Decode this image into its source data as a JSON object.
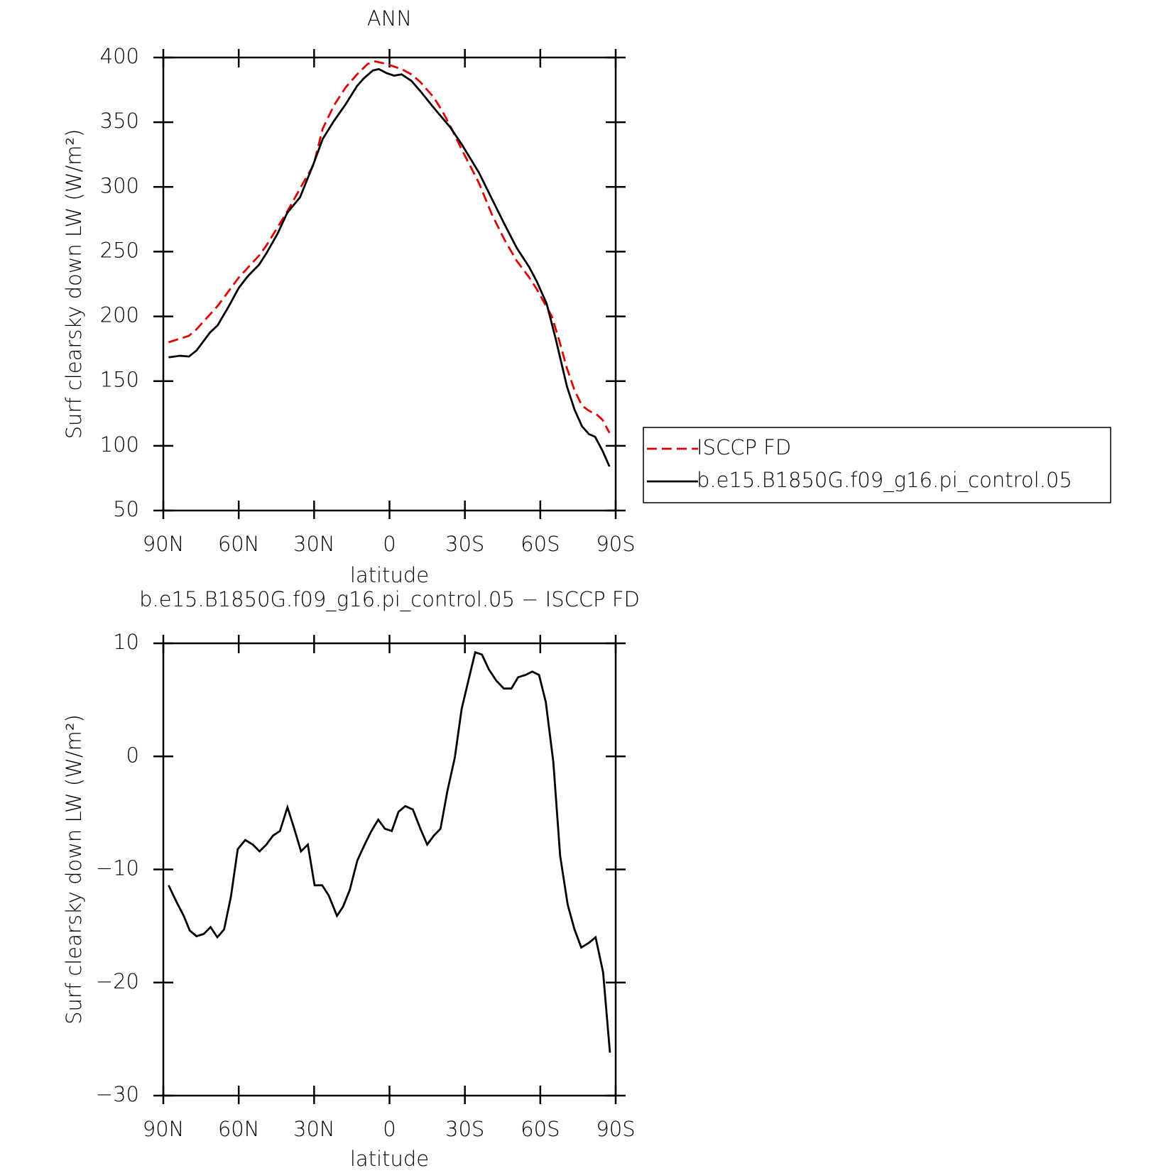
{
  "chart_data": [
    {
      "type": "line",
      "title": "ANN",
      "xlabel": "latitude",
      "ylabel": "Surf clearsky down LW (W/m²)",
      "xlim": [
        90,
        -90
      ],
      "xticks": [
        {
          "value": 90,
          "label": "90N"
        },
        {
          "value": 60,
          "label": "60N"
        },
        {
          "value": 30,
          "label": "30N"
        },
        0,
        {
          "value": -30,
          "label": "30S"
        },
        {
          "value": -60,
          "label": "60S"
        },
        {
          "value": -90,
          "label": "90S"
        }
      ],
      "ylim": [
        50,
        400
      ],
      "yticks": [
        50,
        100,
        150,
        200,
        250,
        300,
        350,
        400
      ],
      "series": [
        {
          "name": "ISCCP FD",
          "color": "#e00000",
          "dashed": true,
          "x": [
            87.9,
            79.8,
            76.8,
            68.4,
            60.0,
            51.9,
            48.9,
            40.7,
            34.1,
            30.2,
            26.6,
            22.1,
            17.4,
            12.9,
            8.7,
            5.7,
            1.2,
            -4.8,
            -8.7,
            -12.3,
            -17.7,
            -21.2,
            -24.2,
            -28.7,
            -35.6,
            -40.7,
            -45.8,
            -50.6,
            -55.6,
            -58.6,
            -64.6,
            -67.6,
            -70.6,
            -73.6,
            -76.6,
            -79.4,
            -82.5,
            -84.8,
            -87.5
          ],
          "values": [
            180,
            185,
            190,
            208,
            230,
            247,
            255,
            281,
            304,
            317,
            345,
            363,
            377,
            387,
            395,
            397,
            395,
            391,
            387,
            381,
            369,
            358,
            347,
            329,
            303,
            279,
            259,
            243,
            230,
            221,
            200,
            181,
            160,
            143,
            131,
            127,
            124,
            120,
            110
          ]
        },
        {
          "name": "b.e15.B1850G.f09_g16.pi_control.05",
          "color": "#000000",
          "dashed": false,
          "x": [
            87.9,
            83.4,
            79.8,
            76.8,
            71.4,
            68.4,
            63.9,
            60.0,
            56.4,
            51.9,
            48.9,
            44.5,
            40.7,
            35.6,
            30.2,
            26.6,
            22.1,
            17.4,
            12.9,
            10.2,
            6.6,
            4.2,
            1.2,
            -1.8,
            -4.8,
            -8.7,
            -12.3,
            -17.7,
            -24.2,
            -28.7,
            -35.6,
            -40.7,
            -45.8,
            -50.6,
            -55.6,
            -58.6,
            -62.5,
            -66.1,
            -70.6,
            -73.6,
            -76.6,
            -79.4,
            -81.8,
            -84.8,
            -87.5
          ],
          "values": [
            168.4,
            169.6,
            169,
            173.6,
            187.6,
            193,
            208,
            222,
            231,
            240,
            249,
            264,
            280,
            292,
            318,
            337,
            351,
            364,
            378,
            384,
            390,
            391,
            388,
            386,
            387,
            382,
            374,
            361,
            346,
            333,
            311,
            291,
            271,
            253,
            238,
            227,
            210,
            183,
            146,
            128,
            115,
            109,
            107,
            96,
            84
          ]
        }
      ]
    },
    {
      "type": "line",
      "title": "b.e15.B1850G.f09_g16.pi_control.05 − ISCCP FD",
      "xlabel": "latitude",
      "ylabel": "Surf clearsky down LW (W/m²)",
      "xlim": [
        90,
        -90
      ],
      "xticks": [
        {
          "value": 90,
          "label": "90N"
        },
        {
          "value": 60,
          "label": "60N"
        },
        {
          "value": 30,
          "label": "30N"
        },
        0,
        {
          "value": -30,
          "label": "30S"
        },
        {
          "value": -60,
          "label": "60S"
        },
        {
          "value": -90,
          "label": "90S"
        }
      ],
      "ylim": [
        -30,
        10
      ],
      "yticks": [
        {
          "value": -30,
          "label": "−30"
        },
        {
          "value": -20,
          "label": "−20"
        },
        {
          "value": -10,
          "label": "−10"
        },
        0,
        10
      ],
      "series": [
        {
          "color": "#000000",
          "dashed": false,
          "x": [
            87.9,
            84.9,
            81.9,
            79.5,
            76.8,
            73.9,
            71.2,
            68.5,
            65.8,
            63.1,
            60.4,
            57.4,
            54.4,
            51.7,
            49.0,
            46.3,
            43.6,
            40.6,
            37.9,
            35.2,
            32.5,
            29.8,
            26.8,
            24.2,
            20.9,
            18.5,
            15.8,
            12.8,
            9.9,
            7.2,
            4.5,
            1.8,
            -0.9,
            -3.6,
            -6.3,
            -9.3,
            -12.3,
            -15.0,
            -17.7,
            -20.3,
            -23.0,
            -26.0,
            -28.7,
            -31.7,
            -34.1,
            -36.8,
            -39.5,
            -42.5,
            -45.5,
            -48.5,
            -51.2,
            -54.1,
            -56.8,
            -59.5,
            -62.2,
            -65.2,
            -67.9,
            -70.9,
            -73.6,
            -76.3,
            -79.3,
            -82.0,
            -85.0,
            -87.7
          ],
          "values": [
            -11.4,
            -12.8,
            -14.1,
            -15.4,
            -15.9,
            -15.7,
            -15.1,
            -16.0,
            -15.3,
            -12.4,
            -8.2,
            -7.4,
            -7.8,
            -8.4,
            -7.8,
            -7.0,
            -6.6,
            -4.5,
            -6.4,
            -8.4,
            -7.8,
            -11.4,
            -11.4,
            -12.3,
            -14.1,
            -13.3,
            -11.8,
            -9.2,
            -7.8,
            -6.6,
            -5.6,
            -6.4,
            -6.6,
            -4.9,
            -4.4,
            -4.7,
            -6.4,
            -7.8,
            -7.0,
            -6.4,
            -3.1,
            -0.1,
            4.2,
            7.0,
            9.2,
            9.0,
            7.7,
            6.7,
            6.0,
            6.0,
            7.0,
            7.2,
            7.5,
            7.2,
            4.8,
            -0.5,
            -8.8,
            -13.1,
            -15.3,
            -16.9,
            -16.5,
            -16.0,
            -19.1,
            -26.2
          ]
        }
      ]
    }
  ]
}
